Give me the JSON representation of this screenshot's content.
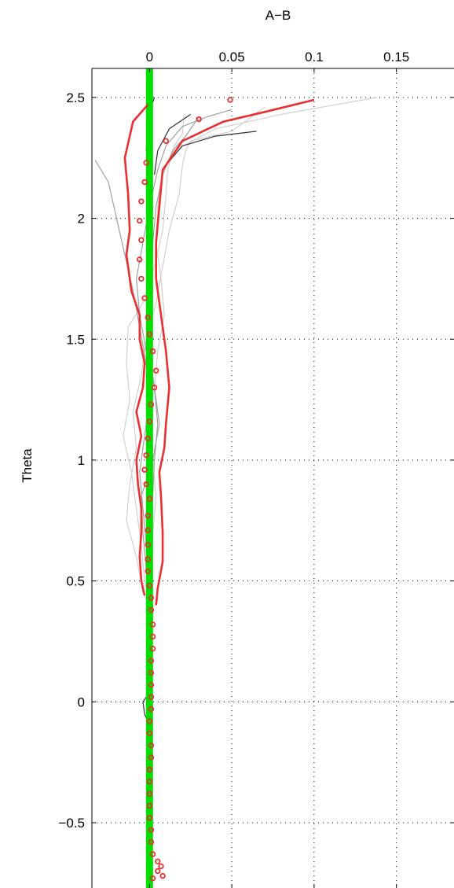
{
  "chart_data": {
    "type": "line",
    "xlabel": "A−B",
    "ylabel": "Theta",
    "xlim": [
      -0.035,
      0.185
    ],
    "ylim": [
      -0.77,
      2.62
    ],
    "x_ticks": [
      0,
      0.05,
      0.1,
      0.15
    ],
    "x_tick_labels": [
      "0",
      "0.05",
      "0.1",
      "0.15"
    ],
    "y_ticks": [
      -0.5,
      0,
      0.5,
      1,
      1.5,
      2,
      2.5
    ],
    "y_tick_labels": [
      "−0.5",
      "0",
      "0.5",
      "1",
      "1.5",
      "2",
      "2.5"
    ],
    "x_axis_position": "top",
    "grid": true,
    "colors": {
      "reference": "#00e000",
      "mean": "#e83030",
      "band": "#e83030",
      "light_gray": "#d0d0d0",
      "mid_gray": "#a0a0a0",
      "dark_gray": "#303030"
    },
    "reference_line": {
      "x": 0
    },
    "mean_points": [
      {
        "x": 0.049,
        "y": 2.49
      },
      {
        "x": 0.03,
        "y": 2.41
      },
      {
        "x": 0.01,
        "y": 2.32
      },
      {
        "x": -0.002,
        "y": 2.23
      },
      {
        "x": -0.003,
        "y": 2.15
      },
      {
        "x": -0.005,
        "y": 2.07
      },
      {
        "x": -0.006,
        "y": 1.99
      },
      {
        "x": -0.005,
        "y": 1.91
      },
      {
        "x": -0.006,
        "y": 1.83
      },
      {
        "x": -0.005,
        "y": 1.75
      },
      {
        "x": -0.003,
        "y": 1.67
      },
      {
        "x": -0.001,
        "y": 1.59
      },
      {
        "x": 0.0,
        "y": 1.52
      },
      {
        "x": 0.002,
        "y": 1.45
      },
      {
        "x": 0.004,
        "y": 1.37
      },
      {
        "x": 0.003,
        "y": 1.3
      },
      {
        "x": 0.001,
        "y": 1.23
      },
      {
        "x": 0.0,
        "y": 1.16
      },
      {
        "x": -0.001,
        "y": 1.09
      },
      {
        "x": -0.002,
        "y": 1.02
      },
      {
        "x": -0.003,
        "y": 0.96
      },
      {
        "x": -0.002,
        "y": 0.9
      },
      {
        "x": 0.0,
        "y": 0.84
      },
      {
        "x": -0.001,
        "y": 0.77
      },
      {
        "x": -0.001,
        "y": 0.71
      },
      {
        "x": -0.001,
        "y": 0.65
      },
      {
        "x": -0.001,
        "y": 0.59
      },
      {
        "x": -0.001,
        "y": 0.54
      },
      {
        "x": 0.0,
        "y": 0.48
      },
      {
        "x": 0.001,
        "y": 0.43
      },
      {
        "x": 0.001,
        "y": 0.38
      },
      {
        "x": 0.002,
        "y": 0.32
      },
      {
        "x": 0.002,
        "y": 0.27
      },
      {
        "x": 0.002,
        "y": 0.22
      },
      {
        "x": 0.001,
        "y": 0.17
      },
      {
        "x": 0.001,
        "y": 0.12
      },
      {
        "x": 0.001,
        "y": 0.07
      },
      {
        "x": 0.001,
        "y": 0.02
      },
      {
        "x": 0.001,
        "y": -0.03
      },
      {
        "x": 0.0,
        "y": -0.08
      },
      {
        "x": 0.0,
        "y": -0.13
      },
      {
        "x": 0.001,
        "y": -0.18
      },
      {
        "x": 0.001,
        "y": -0.23
      },
      {
        "x": 0.0,
        "y": -0.28
      },
      {
        "x": 0.0,
        "y": -0.33
      },
      {
        "x": 0.0,
        "y": -0.38
      },
      {
        "x": 0.0,
        "y": -0.43
      },
      {
        "x": 0.0,
        "y": -0.48
      },
      {
        "x": 0.001,
        "y": -0.53
      },
      {
        "x": 0.001,
        "y": -0.58
      },
      {
        "x": 0.002,
        "y": -0.63
      },
      {
        "x": 0.005,
        "y": -0.66
      },
      {
        "x": 0.007,
        "y": -0.68
      },
      {
        "x": 0.005,
        "y": -0.7
      },
      {
        "x": 0.008,
        "y": -0.72
      },
      {
        "x": 0.002,
        "y": -0.73
      }
    ],
    "band_upper": [
      [
        0.1,
        2.49
      ],
      [
        0.07,
        2.44
      ],
      [
        0.045,
        2.4
      ],
      [
        0.02,
        2.32
      ],
      [
        0.008,
        2.2
      ],
      [
        0.006,
        2.05
      ],
      [
        0.004,
        1.9
      ],
      [
        0.004,
        1.75
      ],
      [
        0.007,
        1.6
      ],
      [
        0.01,
        1.45
      ],
      [
        0.012,
        1.3
      ],
      [
        0.01,
        1.15
      ],
      [
        0.009,
        1.05
      ],
      [
        0.006,
        0.95
      ],
      [
        0.007,
        0.85
      ],
      [
        0.008,
        0.7
      ],
      [
        0.008,
        0.58
      ],
      [
        0.005,
        0.47
      ],
      [
        0.004,
        0.4
      ]
    ],
    "band_lower": [
      [
        -0.001,
        2.47
      ],
      [
        -0.01,
        2.4
      ],
      [
        -0.015,
        2.25
      ],
      [
        -0.013,
        2.1
      ],
      [
        -0.012,
        1.95
      ],
      [
        -0.014,
        1.85
      ],
      [
        -0.011,
        1.7
      ],
      [
        -0.006,
        1.6
      ],
      [
        -0.006,
        1.5
      ],
      [
        -0.003,
        1.4
      ],
      [
        -0.004,
        1.3
      ],
      [
        -0.008,
        1.2
      ],
      [
        -0.005,
        1.1
      ],
      [
        -0.008,
        1.0
      ],
      [
        -0.007,
        0.9
      ],
      [
        -0.005,
        0.8
      ],
      [
        -0.005,
        0.7
      ],
      [
        -0.006,
        0.6
      ],
      [
        -0.005,
        0.5
      ],
      [
        -0.003,
        0.44
      ]
    ],
    "gray_traces": [
      {
        "color": "light_gray",
        "points": [
          [
            0.138,
            2.5
          ],
          [
            0.08,
            2.43
          ],
          [
            0.04,
            2.37
          ],
          [
            0.015,
            2.28
          ],
          [
            0.008,
            2.2
          ],
          [
            0.005,
            2.05
          ],
          [
            0.004,
            1.9
          ],
          [
            0.007,
            1.75
          ],
          [
            0.009,
            1.6
          ],
          [
            0.005,
            1.45
          ],
          [
            0.003,
            1.3
          ],
          [
            0.0,
            1.15
          ],
          [
            0.002,
            1.0
          ],
          [
            0.004,
            0.85
          ],
          [
            0.002,
            0.7
          ],
          [
            0.001,
            0.55
          ],
          [
            0.001,
            0.4
          ]
        ]
      },
      {
        "color": "light_gray",
        "points": [
          [
            0.07,
            2.46
          ],
          [
            0.05,
            2.36
          ],
          [
            0.025,
            2.32
          ],
          [
            0.022,
            2.28
          ],
          [
            0.02,
            2.22
          ],
          [
            0.018,
            2.1
          ],
          [
            0.012,
            1.95
          ],
          [
            0.008,
            1.8
          ],
          [
            0.004,
            1.65
          ],
          [
            -0.002,
            1.5
          ],
          [
            -0.005,
            1.35
          ],
          [
            -0.01,
            1.2
          ],
          [
            -0.008,
            1.05
          ],
          [
            -0.012,
            0.9
          ],
          [
            -0.014,
            0.75
          ],
          [
            -0.008,
            0.6
          ],
          [
            -0.004,
            0.45
          ],
          [
            0.0,
            0.4
          ]
        ]
      },
      {
        "color": "light_gray",
        "points": [
          [
            0.021,
            2.43
          ],
          [
            0.02,
            2.35
          ],
          [
            0.015,
            2.3
          ],
          [
            0.011,
            2.2
          ],
          [
            0.01,
            2.1
          ],
          [
            0.008,
            1.95
          ],
          [
            0.003,
            1.8
          ],
          [
            -0.004,
            1.65
          ],
          [
            -0.013,
            1.55
          ],
          [
            -0.014,
            1.4
          ],
          [
            -0.012,
            1.25
          ],
          [
            -0.016,
            1.1
          ],
          [
            -0.011,
            0.95
          ],
          [
            -0.008,
            0.8
          ],
          [
            -0.005,
            0.65
          ],
          [
            -0.003,
            0.5
          ],
          [
            0.0,
            0.42
          ]
        ]
      },
      {
        "color": "mid_gray",
        "points": [
          [
            0.05,
            2.45
          ],
          [
            0.035,
            2.42
          ],
          [
            0.02,
            2.38
          ],
          [
            0.01,
            2.3
          ],
          [
            0.005,
            2.2
          ],
          [
            0.0,
            2.05
          ],
          [
            -0.004,
            1.9
          ],
          [
            -0.008,
            1.75
          ],
          [
            -0.006,
            1.6
          ],
          [
            -0.002,
            1.45
          ],
          [
            0.003,
            1.3
          ],
          [
            0.006,
            1.15
          ],
          [
            0.002,
            1.0
          ],
          [
            -0.005,
            0.85
          ],
          [
            -0.004,
            0.7
          ],
          [
            -0.002,
            0.55
          ],
          [
            0.0,
            0.42
          ]
        ]
      },
      {
        "color": "mid_gray",
        "points": [
          [
            -0.033,
            2.24
          ],
          [
            -0.025,
            2.15
          ],
          [
            -0.02,
            2.0
          ],
          [
            -0.015,
            1.85
          ],
          [
            -0.01,
            1.7
          ],
          [
            -0.006,
            1.55
          ],
          [
            -0.002,
            1.4
          ],
          [
            0.0,
            1.25
          ],
          [
            -0.003,
            1.1
          ],
          [
            -0.006,
            0.95
          ],
          [
            -0.004,
            0.8
          ],
          [
            -0.002,
            0.65
          ],
          [
            0.0,
            0.5
          ],
          [
            0.0,
            0.42
          ]
        ]
      },
      {
        "color": "mid_gray",
        "points": [
          [
            0.03,
            2.42
          ],
          [
            0.022,
            2.34
          ],
          [
            0.014,
            2.28
          ],
          [
            0.008,
            2.18
          ],
          [
            0.004,
            2.05
          ],
          [
            0.002,
            1.9
          ],
          [
            0.001,
            1.75
          ],
          [
            -0.002,
            1.6
          ],
          [
            0.0,
            1.45
          ],
          [
            0.003,
            1.3
          ],
          [
            0.005,
            1.15
          ],
          [
            0.003,
            1.0
          ],
          [
            0.002,
            0.85
          ],
          [
            0.001,
            0.7
          ],
          [
            0.0,
            0.55
          ],
          [
            0.0,
            0.42
          ]
        ]
      },
      {
        "color": "dark_gray",
        "points": [
          [
            0.003,
            2.5
          ],
          [
            0.0,
            2.44
          ],
          [
            -0.001,
            2.38
          ],
          [
            -0.002,
            2.28
          ]
        ]
      },
      {
        "color": "dark_gray",
        "points": [
          [
            0.065,
            2.36
          ],
          [
            0.04,
            2.34
          ],
          [
            0.02,
            2.3
          ],
          [
            0.01,
            2.22
          ]
        ]
      },
      {
        "color": "dark_gray",
        "points": [
          [
            0.025,
            2.43
          ],
          [
            0.012,
            2.37
          ],
          [
            0.005,
            2.28
          ],
          [
            0.003,
            2.18
          ]
        ]
      },
      {
        "color": "dark_gray",
        "points": [
          [
            0.002,
            0.4
          ],
          [
            0.001,
            0.2
          ],
          [
            0.001,
            0.05
          ],
          [
            -0.004,
            0.0
          ],
          [
            -0.003,
            -0.05
          ],
          [
            0.0,
            -0.1
          ],
          [
            0.001,
            -0.25
          ],
          [
            0.0,
            -0.5
          ],
          [
            0.001,
            -0.65
          ]
        ]
      }
    ]
  }
}
